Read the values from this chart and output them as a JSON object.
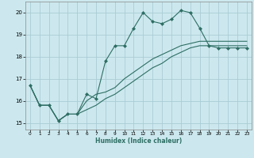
{
  "xlabel": "Humidex (Indice chaleur)",
  "bg_color": "#cce8ee",
  "grid_color": "#aaccd4",
  "line_color": "#2e6e64",
  "xlim": [
    -0.5,
    23.5
  ],
  "ylim": [
    14.7,
    20.5
  ],
  "yticks": [
    15,
    16,
    17,
    18,
    19,
    20
  ],
  "xticks": [
    0,
    1,
    2,
    3,
    4,
    5,
    6,
    7,
    8,
    9,
    10,
    11,
    12,
    13,
    14,
    15,
    16,
    17,
    18,
    19,
    20,
    21,
    22,
    23
  ],
  "series1_x": [
    0,
    1,
    2,
    3,
    4,
    5,
    6,
    7,
    8,
    9,
    10,
    11,
    12,
    13,
    14,
    15,
    16,
    17,
    18,
    19,
    20,
    21,
    22,
    23
  ],
  "series1_y": [
    16.7,
    15.8,
    15.8,
    15.1,
    15.4,
    15.4,
    16.3,
    16.1,
    17.8,
    18.5,
    18.5,
    19.3,
    20.0,
    19.6,
    19.5,
    19.7,
    20.1,
    20.0,
    19.3,
    18.5,
    18.4,
    18.4,
    18.4,
    18.4
  ],
  "series2_x": [
    0,
    1,
    2,
    3,
    4,
    5,
    6,
    7,
    8,
    9,
    10,
    11,
    12,
    13,
    14,
    15,
    16,
    17,
    18,
    19,
    20,
    21,
    22,
    23
  ],
  "series2_y": [
    16.7,
    15.8,
    15.8,
    15.1,
    15.4,
    15.4,
    16.0,
    16.3,
    16.4,
    16.6,
    17.0,
    17.3,
    17.6,
    17.9,
    18.1,
    18.3,
    18.5,
    18.6,
    18.7,
    18.7,
    18.7,
    18.7,
    18.7,
    18.7
  ],
  "series3_x": [
    0,
    1,
    2,
    3,
    4,
    5,
    6,
    7,
    8,
    9,
    10,
    11,
    12,
    13,
    14,
    15,
    16,
    17,
    18,
    19,
    20,
    21,
    22,
    23
  ],
  "series3_y": [
    16.7,
    15.8,
    15.8,
    15.1,
    15.4,
    15.4,
    15.6,
    15.8,
    16.1,
    16.3,
    16.6,
    16.9,
    17.2,
    17.5,
    17.7,
    18.0,
    18.2,
    18.4,
    18.5,
    18.5,
    18.5,
    18.5,
    18.5,
    18.5
  ]
}
